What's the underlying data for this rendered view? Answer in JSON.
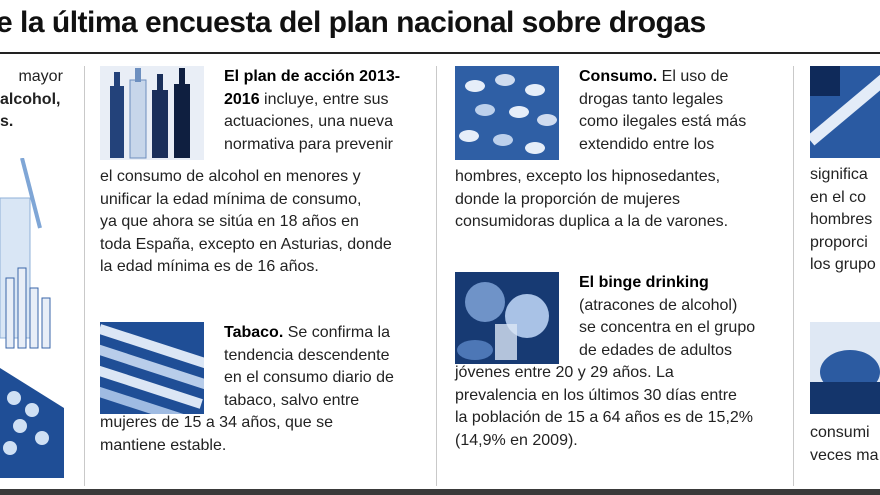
{
  "title": "e la última encuesta del plan nacional sobre drogas",
  "colors": {
    "accent": "#1f4e96",
    "text": "#222222",
    "rule": "#222222"
  },
  "col0": {
    "line1": "mayor",
    "line2": "alcohol,",
    "line3": "s."
  },
  "plan": {
    "head": "El plan de acción 2013-",
    "head2": "2016",
    "line1_rest": " incluye, entre sus",
    "lines": [
      "actuaciones, una nueva",
      "normativa para prevenir",
      "el consumo de alcohol en menores y",
      "unificar la edad mínima de consumo,",
      "ya que ahora se sitúa en 18 años en",
      "toda España, excepto en Asturias, donde",
      "la edad mínima es de 16 años."
    ],
    "icon": "bottles-photo-icon"
  },
  "tabaco": {
    "head": "Tabaco.",
    "line1_rest": " Se confirma la",
    "lines": [
      "tendencia descendente",
      "en el consumo diario de",
      "tabaco, salvo entre",
      "mujeres de 15 a 34 años, que se",
      "mantiene estable."
    ],
    "icon": "cigarettes-photo-icon"
  },
  "consumo": {
    "head": "Consumo.",
    "line1_rest": " El uso de",
    "lines": [
      "drogas tanto legales",
      "como ilegales está más",
      "extendido entre los",
      "hombres, excepto los hipnosedantes,",
      "donde la proporción de mujeres",
      "consumidoras duplica a la de varones."
    ],
    "icon": "pills-photo-icon"
  },
  "binge": {
    "head": "El binge drinking",
    "lines": [
      "(atracones de alcohol)",
      "se concentra en el grupo",
      "de edades de adultos",
      "jóvenes entre 20 y 29 años. La",
      "prevalencia en los últimos 30 días entre",
      "la población de 15 a 64 años es de 15,2%",
      "(14,9% en 2009)."
    ],
    "icon": "drinking-photo-icon"
  },
  "col4": {
    "lines_top": [
      "significa",
      "en el co",
      "hombres",
      "proporci",
      "los grupo"
    ],
    "lines_bottom": [
      "consumi",
      "veces ma"
    ],
    "icon_top": "syringe-photo-icon",
    "icon_bottom": "hand-photo-icon"
  }
}
